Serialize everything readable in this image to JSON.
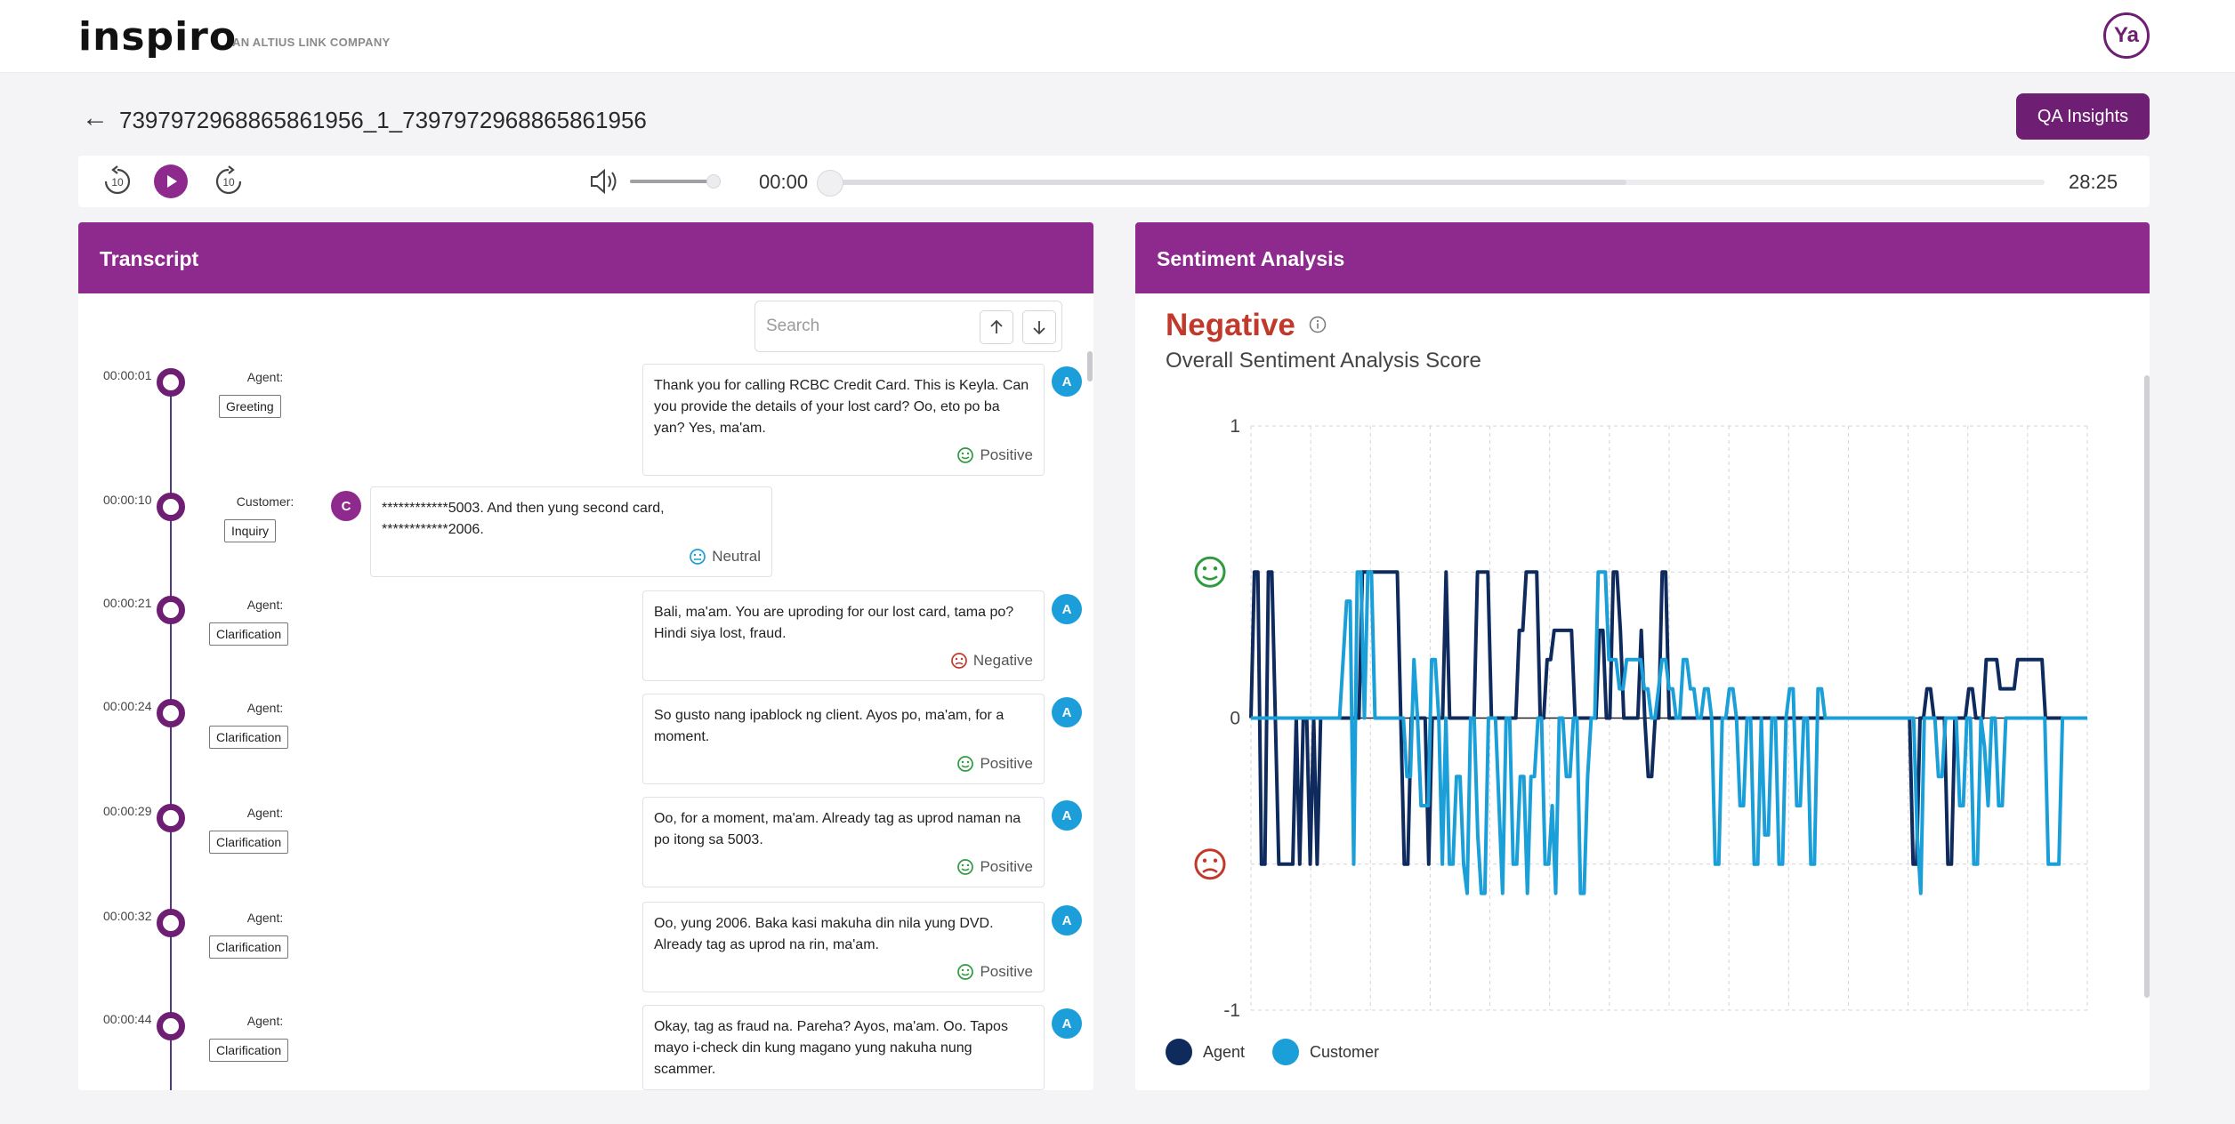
{
  "header": {
    "logo_text": "inspiro",
    "logo_sub": "AN ALTIUS LINK COMPANY",
    "avatar_initials": "Ya"
  },
  "page": {
    "title": "7397972968865861956_1_7397972968865861956",
    "qa_button": "QA Insights"
  },
  "player": {
    "current_time": "00:00",
    "total_time": "28:25",
    "progress": 0,
    "volume": 0.9,
    "icons": [
      "rewind-10-icon",
      "play-icon",
      "forward-10-icon",
      "volume-icon"
    ]
  },
  "transcript": {
    "title": "Transcript",
    "search_placeholder": "Search",
    "entries": [
      {
        "time": "00:00:01",
        "speaker": "Agent:",
        "tag": "Greeting",
        "badge": "A",
        "side": "agent",
        "text": "Thank you for calling RCBC Credit Card. This is Keyla. Can you provide the details of your lost card? Oo, eto po ba yan? Yes, ma'am.",
        "sentiment": "Positive"
      },
      {
        "time": "00:00:10",
        "speaker": "Customer:",
        "tag": "Inquiry",
        "badge": "C",
        "side": "customer",
        "text": "************5003. And then yung second card, ************2006.",
        "sentiment": "Neutral"
      },
      {
        "time": "00:00:21",
        "speaker": "Agent:",
        "tag": "Clarification",
        "badge": "A",
        "side": "agent",
        "text": "Bali, ma'am. You are uproding for our lost card, tama po? Hindi siya lost, fraud.",
        "sentiment": "Negative"
      },
      {
        "time": "00:00:24",
        "speaker": "Agent:",
        "tag": "Clarification",
        "badge": "A",
        "side": "agent",
        "text": "So gusto nang ipablock ng client. Ayos po, ma'am, for a moment.",
        "sentiment": "Positive"
      },
      {
        "time": "00:00:29",
        "speaker": "Agent:",
        "tag": "Clarification",
        "badge": "A",
        "side": "agent",
        "text": "Oo, for a moment, ma'am. Already tag as uprod naman na po itong sa 5003.",
        "sentiment": "Positive"
      },
      {
        "time": "00:00:32",
        "speaker": "Agent:",
        "tag": "Clarification",
        "badge": "A",
        "side": "agent",
        "text": "Oo, yung 2006. Baka kasi makuha din nila yung DVD. Already tag as uprod na rin, ma'am.",
        "sentiment": "Positive"
      },
      {
        "time": "00:00:44",
        "speaker": "Agent:",
        "tag": "Clarification",
        "badge": "A",
        "side": "agent",
        "text": "Okay, tag as fraud na. Pareha? Ayos, ma'am. Oo. Tapos mayo i-check din kung magano yung nakuha nung scammer.",
        "sentiment": ""
      }
    ]
  },
  "sentiment": {
    "title": "Sentiment Analysis",
    "overall_label": "Negative",
    "subtitle": "Overall Sentiment Analysis Score",
    "colors": {
      "negative": "#c0392b",
      "positive": "#2e9b3f",
      "neutral": "#1b9ed9"
    }
  },
  "chart_data": {
    "type": "line",
    "ylim": [
      -1,
      1
    ],
    "y_ticks": [
      "1",
      "0",
      "-1"
    ],
    "grid": true,
    "legend_position": "bottom-left",
    "series": [
      {
        "name": "Agent",
        "color": "#0f2a5c",
        "values": [
          0,
          0.5,
          0.5,
          -0.5,
          -0.5,
          0.5,
          0.5,
          0,
          -0.5,
          -0.5,
          -0.5,
          -0.5,
          -0.5,
          0,
          -0.5,
          0,
          0,
          -0.5,
          0,
          -0.5,
          0,
          0,
          0,
          0,
          0,
          0,
          0,
          0,
          0,
          0,
          0,
          0,
          0.5,
          0.5,
          0.5,
          0.5,
          0.5,
          0.5,
          0.5,
          0.5,
          0.5,
          0.5,
          0.5,
          0,
          -0.5,
          -0.5,
          0,
          0,
          0,
          0,
          0,
          -0.5,
          0,
          0,
          0,
          0,
          0.5,
          0,
          0,
          0,
          0,
          0,
          0,
          0,
          0,
          0.5,
          0.5,
          0.5,
          0.5,
          0,
          0,
          0,
          0,
          0,
          0,
          0,
          0,
          0.3,
          0.3,
          0.5,
          0.5,
          0.5,
          0.5,
          0,
          0,
          0.2,
          0.2,
          0.3,
          0.3,
          0.3,
          0.3,
          0.3,
          0.3,
          0,
          0,
          0,
          0,
          0,
          0,
          0,
          0.3,
          0.3,
          0,
          0,
          0.5,
          0.5,
          0.3,
          0,
          0,
          0,
          0,
          0,
          0.3,
          0,
          -0.2,
          -0.2,
          0,
          0,
          0.5,
          0.5,
          0,
          0,
          0,
          0,
          0,
          0,
          0,
          0,
          0,
          0,
          0,
          0,
          0,
          0,
          0,
          0,
          0,
          0,
          0,
          0,
          0,
          0,
          0,
          0,
          0,
          0,
          0,
          0,
          0,
          0,
          0,
          0,
          0,
          0,
          0,
          0,
          0,
          0,
          0,
          0,
          0,
          0,
          0,
          0,
          0,
          0,
          0,
          0,
          0,
          0,
          0,
          0,
          0,
          0,
          0,
          0,
          0,
          0,
          0,
          0,
          0,
          0,
          0,
          0,
          0,
          0,
          0,
          0,
          0,
          0,
          -0.5,
          -0.5,
          0,
          0,
          0.1,
          0.1,
          0,
          0,
          0,
          0,
          -0.5,
          -0.5,
          0,
          0,
          0,
          0,
          0.1,
          0.1,
          0,
          0,
          0,
          0.2,
          0.2,
          0.2,
          0.2,
          0.1,
          0.1,
          0.1,
          0.1,
          0.1,
          0.2,
          0.2,
          0.2,
          0.2,
          0.2,
          0.2,
          0.2,
          0.2,
          0,
          0,
          0,
          0,
          0,
          0,
          0,
          0,
          0,
          0,
          0,
          0,
          0
        ]
      },
      {
        "name": "Customer",
        "color": "#1a9fd8",
        "values": [
          0,
          0,
          0,
          0,
          0,
          0,
          0,
          0,
          0,
          0,
          0,
          0,
          0,
          0,
          0,
          0,
          0,
          0,
          0,
          0,
          0,
          0,
          0,
          0,
          0,
          0,
          0.2,
          0.4,
          0.4,
          -0.5,
          0.5,
          0.5,
          0,
          0.5,
          0.5,
          0,
          0,
          0,
          0,
          0,
          0,
          0,
          0,
          0,
          -0.2,
          -0.2,
          0.2,
          0,
          -0.3,
          -0.3,
          -0.3,
          0.2,
          0.2,
          0,
          -0.5,
          0,
          -0.5,
          -0.5,
          -0.2,
          -0.2,
          -0.5,
          -0.6,
          0,
          0,
          -0.4,
          -0.6,
          -0.6,
          0,
          0,
          0,
          -0.3,
          -0.6,
          0,
          0,
          -0.5,
          -0.5,
          -0.2,
          -0.2,
          -0.6,
          -0.2,
          -0.2,
          0,
          0,
          -0.5,
          -0.5,
          -0.3,
          -0.6,
          0,
          0,
          -0.2,
          -0.2,
          0,
          0,
          -0.6,
          -0.6,
          -0.2,
          0,
          0,
          0.5,
          0.5,
          0.5,
          0.2,
          0.2,
          0.2,
          0.1,
          0.1,
          0.2,
          0.2,
          0.2,
          0.2,
          0.2,
          0.1,
          0.1,
          0,
          0,
          0.1,
          0.2,
          0.2,
          0.1,
          0.1,
          0,
          0,
          0.2,
          0.2,
          0.1,
          0.1,
          0,
          0,
          0.1,
          0.1,
          0,
          -0.5,
          -0.5,
          0,
          0,
          0.1,
          0.1,
          0,
          -0.3,
          -0.3,
          0,
          0,
          -0.5,
          -0.5,
          0,
          -0.4,
          -0.4,
          0,
          0,
          -0.5,
          -0.5,
          0,
          0.1,
          0.1,
          -0.3,
          -0.3,
          0,
          0,
          -0.5,
          -0.5,
          0.1,
          0.1,
          0,
          0,
          0,
          0,
          0,
          0,
          0,
          0,
          0,
          0,
          0,
          0,
          0,
          0,
          0,
          0,
          0,
          0,
          0,
          0,
          0,
          0,
          0,
          0,
          0,
          0,
          -0.4,
          -0.6,
          0,
          0,
          0,
          0,
          -0.2,
          -0.2,
          0,
          0,
          0,
          0,
          -0.3,
          -0.3,
          0,
          0,
          -0.5,
          -0.5,
          0,
          -0.1,
          -0.3,
          0,
          0,
          -0.3,
          -0.3,
          0,
          0,
          0,
          0,
          0,
          0,
          0,
          0,
          0,
          0,
          0,
          0,
          -0.5,
          -0.5,
          -0.5,
          -0.5,
          0,
          0,
          0,
          0,
          0,
          0,
          0,
          0
        ]
      }
    ]
  }
}
